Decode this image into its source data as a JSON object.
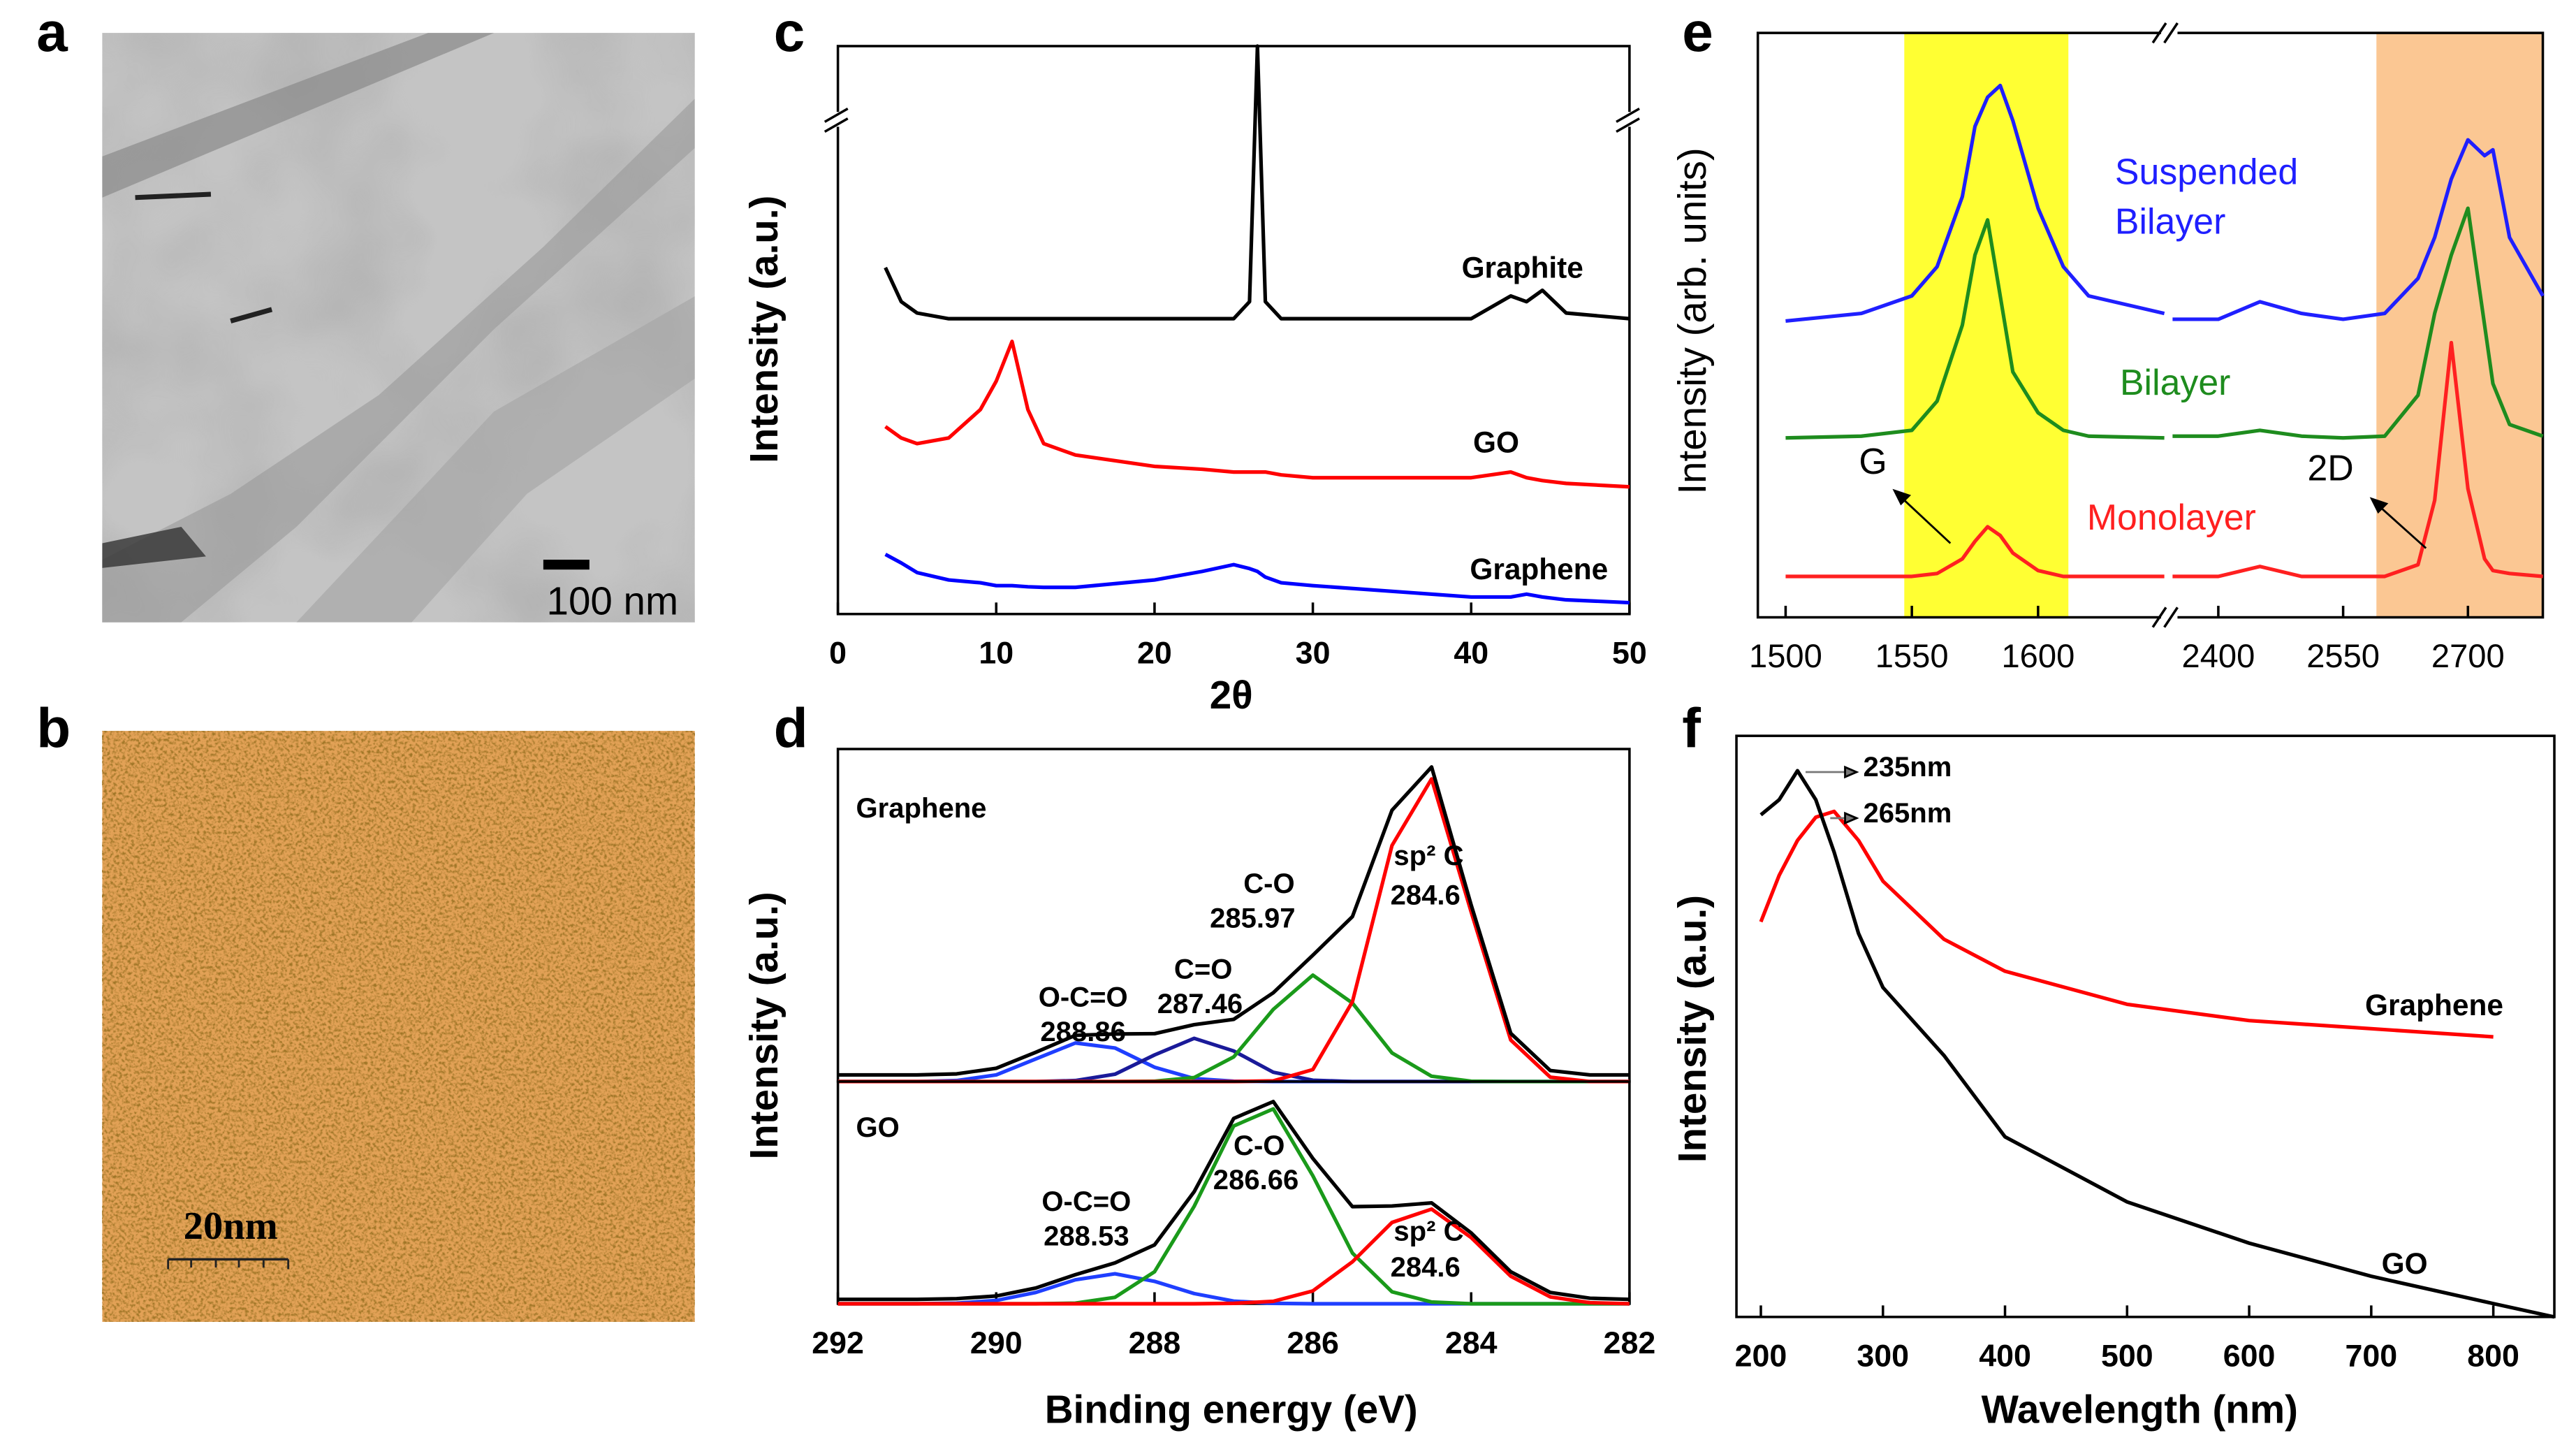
{
  "panel_labels": [
    "a",
    "b",
    "c",
    "d",
    "e",
    "f"
  ],
  "images": [
    {
      "scale_bar": "100 nm"
    },
    {
      "scale_bar": "20nm"
    }
  ],
  "chart_data": [
    {
      "type": "line",
      "xlabel": "2θ",
      "ylabel": "Intensity (a.u.)",
      "xlim": [
        0,
        50
      ],
      "xticks": [
        0,
        10,
        20,
        30,
        40,
        50
      ],
      "ylim": [
        0,
        100
      ],
      "x": [
        3,
        4,
        5,
        7,
        9,
        10,
        11,
        12,
        13,
        15,
        20,
        23,
        25,
        26,
        26.5,
        27,
        28,
        30,
        35,
        40,
        42.5,
        43.5,
        44.5,
        46,
        50
      ],
      "series": [
        {
          "name": "Graphite",
          "color": "#000000",
          "values": [
            61,
            55,
            53,
            52,
            52,
            52,
            52,
            52,
            52,
            52,
            52,
            52,
            52,
            55,
            100,
            55,
            52,
            52,
            52,
            52,
            56,
            55,
            57,
            53,
            52
          ]
        },
        {
          "name": "GO",
          "color": "#ff0000",
          "values": [
            33,
            31,
            30,
            31,
            36,
            41,
            48,
            36,
            30,
            28,
            26,
            25.5,
            25,
            25,
            25,
            25,
            24.5,
            24,
            24,
            24,
            25,
            24,
            23.5,
            23,
            22.4
          ]
        },
        {
          "name": "Graphene",
          "color": "#0000ff",
          "values": [
            10.5,
            9,
            7.3,
            6,
            5.5,
            5,
            5,
            4.8,
            4.7,
            4.7,
            6,
            7.5,
            8.7,
            8,
            7.5,
            6.5,
            5.5,
            5,
            4,
            3,
            3,
            3.5,
            3,
            2.5,
            2
          ]
        }
      ]
    },
    {
      "type": "line",
      "ylabel": "Intensity (a.u.)",
      "xlim": [
        292,
        282
      ],
      "ylim": [
        0,
        100
      ],
      "annotations": [
        "Graphene",
        "O-C=O",
        "288.86",
        "C=O",
        "287.46",
        "C-O",
        "285.97",
        "sp² C",
        "284.6"
      ],
      "x": [
        292,
        291.5,
        291,
        290.5,
        290,
        289.5,
        289,
        288.5,
        288,
        287.5,
        287,
        286.5,
        286,
        285.5,
        285,
        284.5,
        284,
        283.5,
        283,
        282.5,
        282
      ],
      "series": [
        {
          "color": "#1f3fff",
          "values": [
            0,
            0,
            0,
            0.3,
            2,
            6.8,
            11.6,
            10.1,
            4.3,
            0.9,
            0.1,
            0,
            0,
            0,
            0,
            0,
            0,
            0,
            0,
            0,
            0
          ]
        },
        {
          "color": "#1a1a99",
          "values": [
            0,
            0,
            0,
            0,
            0,
            0,
            0.3,
            2.2,
            8,
            13,
            9.2,
            2.8,
            0.4,
            0,
            0,
            0,
            0,
            0,
            0,
            0,
            0
          ]
        },
        {
          "color": "#1a9a1a",
          "values": [
            0,
            0,
            0,
            0,
            0,
            0,
            0,
            0,
            0.1,
            1.2,
            7.4,
            21.7,
            32,
            23.6,
            8.6,
            1.6,
            0.1,
            0,
            0,
            0,
            0
          ]
        },
        {
          "color": "#ff0000",
          "values": [
            0,
            0,
            0,
            0,
            0,
            0,
            0,
            0,
            0,
            0,
            0,
            0.2,
            3.6,
            24,
            71,
            91,
            51,
            12.5,
            1.3,
            0,
            0
          ]
        },
        {
          "color": "#000000",
          "values": [
            2,
            2,
            2,
            2.3,
            4,
            8.8,
            13.9,
            14.3,
            14.4,
            17.1,
            18.7,
            26.7,
            38,
            49.6,
            81.6,
            94.6,
            53.1,
            14.5,
            3.3,
            2,
            2
          ]
        }
      ]
    },
    {
      "type": "line",
      "xlabel": "Binding energy (eV)",
      "xlim": [
        292,
        282
      ],
      "xticks": [
        292,
        290,
        288,
        286,
        284,
        282
      ],
      "ylim": [
        0,
        100
      ],
      "annotations": [
        "GO",
        "O-C=O",
        "288.53",
        "C-O",
        "286.66",
        "sp² C",
        "284.6"
      ],
      "x": [
        292,
        291.5,
        291,
        290.5,
        290,
        289.5,
        289,
        288.5,
        288,
        287.5,
        287,
        286.5,
        286,
        285.5,
        285,
        284.5,
        284,
        283.5,
        283,
        282.5,
        282
      ],
      "series": [
        {
          "color": "#1f3fff",
          "values": [
            0,
            0,
            0,
            0.3,
            1.5,
            5.1,
            10.8,
            13.5,
            10.1,
            4.6,
            1.2,
            0.2,
            0,
            0,
            0,
            0,
            0,
            0,
            0,
            0,
            0
          ]
        },
        {
          "color": "#1a9a1a",
          "values": [
            0,
            0,
            0,
            0,
            0,
            0,
            0.3,
            2.9,
            14.4,
            43.8,
            80,
            87.7,
            57.6,
            22.8,
            5.4,
            0.8,
            0,
            0,
            0,
            0,
            0
          ]
        },
        {
          "color": "#ff0000",
          "values": [
            0,
            0,
            0,
            0,
            0,
            0,
            0,
            0,
            0,
            0,
            0.2,
            1.1,
            5.8,
            18.9,
            36.6,
            42.6,
            29.8,
            12.4,
            3.1,
            0.5,
            0
          ]
        },
        {
          "color": "#000000",
          "values": [
            2,
            2,
            2,
            2.3,
            3.5,
            7.1,
            13.1,
            18.4,
            26.5,
            50.4,
            83.4,
            91,
            65.4,
            43.7,
            44,
            45.4,
            31.9,
            14.4,
            5.1,
            2.5,
            2
          ]
        }
      ]
    },
    {
      "type": "line",
      "ylabel": "Intensity (arb. units)",
      "ylim": [
        0,
        100
      ],
      "x_segments": [
        {
          "xlim": [
            1489,
            1650
          ],
          "xticks": [
            1500,
            1550,
            1600
          ]
        },
        {
          "xlim": [
            2345,
            2790
          ],
          "xticks": [
            2400,
            2550,
            2700
          ]
        }
      ],
      "highlights": [
        {
          "xlim": [
            1547,
            1612
          ],
          "color": "#ffff33"
        },
        {
          "xlim": [
            2590,
            2790
          ],
          "color": "#fbc793"
        }
      ],
      "annotations": [
        "G",
        "2D"
      ],
      "x": [
        1500,
        1530,
        1550,
        1560,
        1570,
        1575,
        1580,
        1585,
        1590,
        1600,
        1610,
        1620,
        1650,
        2345,
        2400,
        2450,
        2500,
        2550,
        2600,
        2640,
        2660,
        2680,
        2700,
        2720,
        2730,
        2750,
        2790
      ],
      "series": [
        {
          "name": "Suspended Bilayer",
          "color": "#1f1fff",
          "values": [
            50.7,
            52,
            55,
            60,
            72,
            84,
            89,
            91,
            85,
            70,
            60,
            55,
            52,
            51,
            51,
            54,
            52,
            51,
            52,
            58,
            65,
            75,
            81.7,
            79,
            80,
            65,
            55
          ]
        },
        {
          "name": "Bilayer",
          "color": "#1e8c1e",
          "values": [
            30.7,
            31,
            32,
            37,
            50,
            62,
            68,
            55,
            42,
            35,
            32,
            31,
            30.7,
            31,
            31,
            32,
            31,
            30.7,
            31,
            38,
            52,
            62,
            70,
            50,
            40,
            33,
            31
          ]
        },
        {
          "name": "Monolayer",
          "color": "#ff2020",
          "values": [
            7,
            7,
            7,
            7.5,
            10,
            13,
            15.5,
            14,
            11,
            8,
            7,
            7,
            7,
            7,
            7,
            8.7,
            7,
            7,
            7,
            9,
            20,
            47,
            22,
            10,
            8,
            7.5,
            7
          ]
        }
      ]
    },
    {
      "type": "line",
      "xlabel": "Wavelength (nm)",
      "ylabel": "Intensity (a.u.)",
      "xlim": [
        180,
        850
      ],
      "xticks": [
        200,
        300,
        400,
        500,
        600,
        700,
        800
      ],
      "ylim": [
        0,
        100
      ],
      "annotations": [
        "235nm",
        "265nm"
      ],
      "x": [
        200,
        215,
        230,
        245,
        260,
        280,
        300,
        350,
        400,
        500,
        600,
        700,
        800,
        850
      ],
      "series": [
        {
          "name": "Graphene",
          "color": "#ff0000",
          "values": [
            68,
            76,
            82,
            86,
            87,
            82,
            75,
            65,
            59.5,
            53.8,
            51,
            49.6,
            48.2,
            null
          ]
        },
        {
          "name": "GO",
          "color": "#000000",
          "values": [
            86.4,
            89,
            94,
            89,
            80,
            66,
            56.7,
            45,
            31,
            19.8,
            12.7,
            7,
            2.3,
            0
          ]
        }
      ]
    }
  ]
}
